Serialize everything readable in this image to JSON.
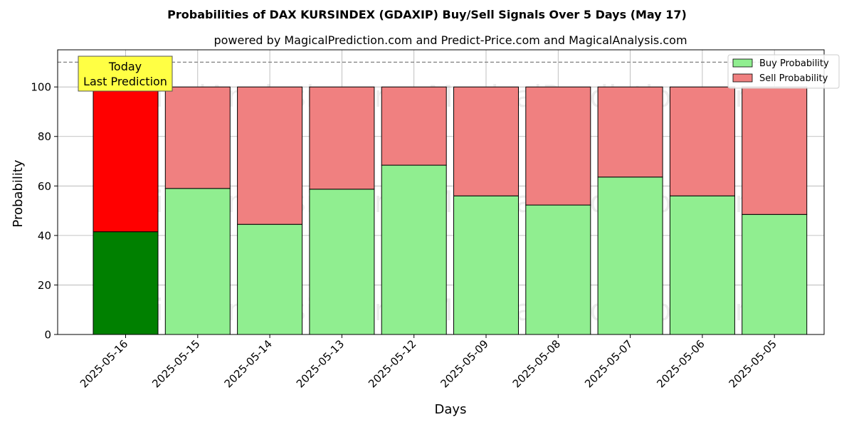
{
  "chart_data": {
    "type": "bar",
    "stacked": true,
    "title": "Probabilities of DAX KURSINDEX (GDAXIP) Buy/Sell Signals Over 5 Days (May 17)",
    "subtitle": "powered by MagicalPrediction.com and Predict-Price.com and MagicalAnalysis.com",
    "xlabel": "Days",
    "ylabel": "Probability",
    "ylim": [
      0,
      115
    ],
    "yticks": [
      0,
      20,
      40,
      60,
      80,
      100
    ],
    "reference_line": 110,
    "grid": true,
    "legend_position": "top-right",
    "categories": [
      "2025-05-16",
      "2025-05-15",
      "2025-05-14",
      "2025-05-13",
      "2025-05-12",
      "2025-05-09",
      "2025-05-08",
      "2025-05-07",
      "2025-05-06",
      "2025-05-05"
    ],
    "series": [
      {
        "name": "Buy Probability",
        "color": "#90ee90",
        "highlight_color": "#008000",
        "values": [
          41.5,
          59.0,
          44.5,
          58.7,
          68.4,
          56.0,
          52.3,
          63.6,
          56.0,
          48.5
        ]
      },
      {
        "name": "Sell Probability",
        "color": "#f08080",
        "highlight_color": "#ff0000",
        "values": [
          58.5,
          41.0,
          55.5,
          41.3,
          31.6,
          44.0,
          47.7,
          36.4,
          44.0,
          51.5
        ]
      }
    ],
    "annotation": {
      "lines": [
        "Today",
        "Last Prediction"
      ],
      "color": "#ffff44"
    },
    "watermarks": [
      "MagicalAnalysis.com",
      "MagicalPrediction.com"
    ]
  }
}
